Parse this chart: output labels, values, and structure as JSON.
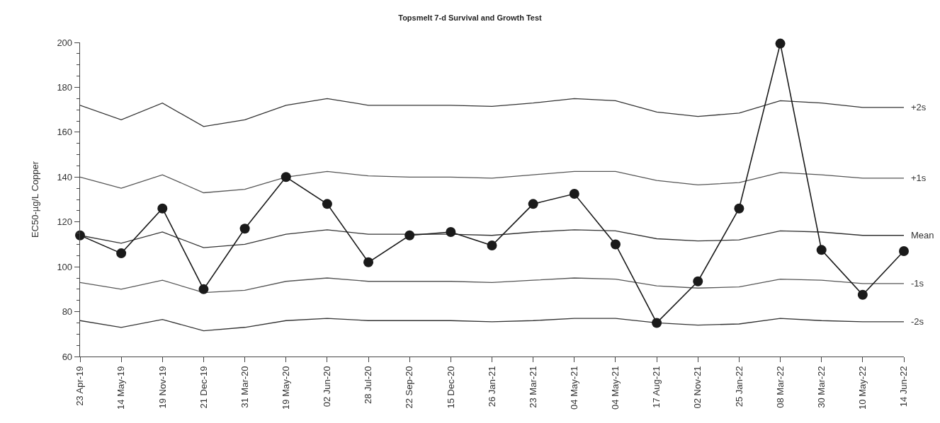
{
  "chart_data": {
    "type": "line",
    "title": "Topsmelt 7-d Survival and Growth Test",
    "ylabel": "EC50-µg/L Copper",
    "categories": [
      "23 Apr-19",
      "14 May-19",
      "19 Nov-19",
      "21 Dec-19",
      "31 Mar-20",
      "19 May-20",
      "02 Jun-20",
      "28 Jul-20",
      "22 Sep-20",
      "15 Dec-20",
      "26 Jan-21",
      "23 Mar-21",
      "04 May-21",
      "04 May-21",
      "17 Aug-21",
      "02 Nov-21",
      "25 Jan-22",
      "08 Mar-22",
      "30 Mar-22",
      "10 May-22",
      "14 Jun-22"
    ],
    "series": [
      {
        "name": "+2s",
        "color": "#333333",
        "marker": "none",
        "values": [
          172,
          165.5,
          173,
          162.5,
          165.5,
          172,
          175,
          172,
          172,
          172,
          171.5,
          173,
          175,
          174,
          169,
          167,
          168.5,
          174,
          173,
          171,
          171
        ]
      },
      {
        "name": "+1s",
        "color": "#555555",
        "marker": "none",
        "values": [
          140,
          135,
          141,
          133,
          134.5,
          140,
          142.5,
          140.5,
          140,
          140,
          139.5,
          141,
          142.5,
          142.5,
          138.5,
          136.5,
          137.5,
          142,
          141,
          139.5,
          139.5
        ]
      },
      {
        "name": "Mean",
        "color": "#333333",
        "marker": "none",
        "values": [
          114,
          110.5,
          115.5,
          108.5,
          110,
          114.5,
          116.5,
          114.5,
          114.5,
          114.5,
          114,
          115.5,
          116.5,
          116,
          112.5,
          111.5,
          112,
          116,
          115.5,
          114,
          114
        ]
      },
      {
        "name": "-1s",
        "color": "#555555",
        "marker": "none",
        "values": [
          93,
          90,
          94,
          88.5,
          89.5,
          93.5,
          95,
          93.5,
          93.5,
          93.5,
          93,
          94,
          95,
          94.5,
          91.5,
          90.5,
          91,
          94.5,
          94,
          92.5,
          92.5
        ]
      },
      {
        "name": "-2s",
        "color": "#333333",
        "marker": "none",
        "values": [
          76,
          73,
          76.5,
          71.5,
          73,
          76,
          77,
          76,
          76,
          76,
          75.5,
          76,
          77,
          77,
          75,
          74,
          74.5,
          77,
          76,
          75.5,
          75.5
        ]
      },
      {
        "color": "#1a1a1a",
        "marker": "circle",
        "values": [
          114,
          106,
          126,
          90,
          117,
          140,
          128,
          102,
          114,
          115.5,
          109.5,
          128,
          132.5,
          110,
          75,
          93.5,
          126,
          199.5,
          107.5,
          87.5,
          107
        ]
      }
    ],
    "ylim": [
      60,
      200
    ],
    "yticks": [
      60,
      {
        "value": 65,
        "label": null
      },
      {
        "value": 70,
        "label": null
      },
      {
        "value": 75,
        "label": null
      },
      80,
      {
        "value": 85,
        "label": null
      },
      {
        "value": 90,
        "label": null
      },
      {
        "value": 95,
        "label": null
      },
      100,
      {
        "value": 105,
        "label": null
      },
      {
        "value": 110,
        "label": null
      },
      {
        "value": 115,
        "label": null
      },
      120,
      {
        "value": 125,
        "label": null
      },
      {
        "value": 130,
        "label": null
      },
      {
        "value": 135,
        "label": null
      },
      140,
      {
        "value": 145,
        "label": null
      },
      {
        "value": 150,
        "label": null
      },
      {
        "value": 155,
        "label": null
      },
      160,
      {
        "value": 165,
        "label": null
      },
      {
        "value": 170,
        "label": null
      },
      {
        "value": 175,
        "label": null
      },
      180,
      {
        "value": 185,
        "label": null
      },
      {
        "value": 190,
        "label": null
      },
      {
        "value": 195,
        "label": null
      },
      200
    ],
    "grid": false,
    "legend": false,
    "line_style": "solid"
  }
}
